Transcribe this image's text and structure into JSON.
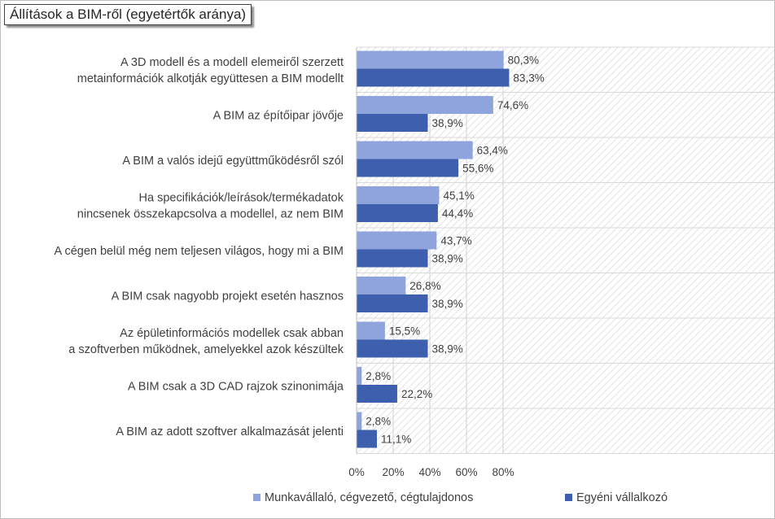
{
  "chart_data": {
    "type": "bar",
    "orientation": "horizontal",
    "title": "Állítások a BIM-ről (egyetértők aránya)",
    "categories": [
      [
        "A 3D modell és a modell elemeiről szerzett",
        "metainformációk alkotják együttesen a BIM modellt"
      ],
      [
        "A BIM az építőipar jövője"
      ],
      [
        "A BIM a valós idejű együttműködésről szól"
      ],
      [
        "Ha specifikációk/leírások/termékadatok",
        "nincsenek összekapcsolva a modellel, az nem BIM"
      ],
      [
        "A cégen belül még nem teljesen világos, hogy mi a BIM"
      ],
      [
        "A BIM csak nagyobb projekt esetén hasznos"
      ],
      [
        "Az épületinformációs modellek csak abban",
        "a szoftverben működnek, amelyekkel azok készültek"
      ],
      [
        "A BIM csak a 3D CAD rajzok szinonimája"
      ],
      [
        "A BIM az adott szoftver alkalmazását jelenti"
      ]
    ],
    "series": [
      {
        "name": "Munkavállaló, cégvezető, cégtulajdonos",
        "color": "#8fa4dc",
        "values": [
          80.3,
          74.6,
          63.4,
          45.1,
          43.7,
          26.8,
          15.5,
          2.8,
          2.8
        ],
        "labels": [
          "80,3%",
          "74,6%",
          "63,4%",
          "45,1%",
          "43,7%",
          "26,8%",
          "15,5%",
          "2,8%",
          "2,8%"
        ]
      },
      {
        "name": "Egyéni vállalkozó",
        "color": "#3d5fad",
        "values": [
          83.3,
          38.9,
          55.6,
          44.4,
          38.9,
          38.9,
          38.9,
          22.2,
          11.1
        ],
        "labels": [
          "83,3%",
          "38,9%",
          "55,6%",
          "44,4%",
          "38,9%",
          "38,9%",
          "38,9%",
          "22,2%",
          "11,1%"
        ]
      }
    ],
    "xlim": [
      0,
      100
    ],
    "xticks": [
      0,
      20,
      40,
      60,
      80
    ],
    "xtick_labels": [
      "0%",
      "20%",
      "40%",
      "60%",
      "80%"
    ],
    "grid": true,
    "legend_position": "bottom"
  }
}
